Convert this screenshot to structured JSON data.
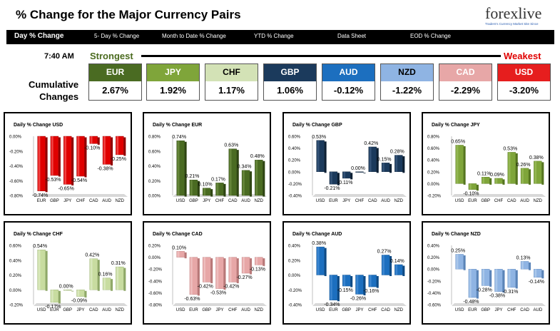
{
  "header": {
    "title": "% Change for the Major Currency Pairs",
    "logo_main": "forexlive",
    "logo_tag": "Traders's Currency Market Site Since"
  },
  "nav": {
    "items": [
      "Day % Change",
      "5- Day % Change",
      "Month to Date % Change",
      "YTD % Change",
      "Data Sheet",
      "EOD % Change"
    ]
  },
  "summary": {
    "time": "7:40 AM",
    "strongest_label": "Strongest",
    "weakest_label": "Weakest",
    "cumulative_label_1": "Cumulative",
    "cumulative_label_2": "Changes",
    "currencies": [
      {
        "name": "EUR",
        "value": "2.67%",
        "bg": "#4a6b22",
        "fg": "#ffffff"
      },
      {
        "name": "JPY",
        "value": "1.92%",
        "bg": "#7fa53a",
        "fg": "#ffffff"
      },
      {
        "name": "CHF",
        "value": "1.17%",
        "bg": "#d3e2b6",
        "fg": "#000000"
      },
      {
        "name": "GBP",
        "value": "1.06%",
        "bg": "#1b3a5c",
        "fg": "#ffffff"
      },
      {
        "name": "AUD",
        "value": "-0.12%",
        "bg": "#1c6fbf",
        "fg": "#ffffff"
      },
      {
        "name": "NZD",
        "value": "-1.22%",
        "bg": "#8fb4e3",
        "fg": "#000000"
      },
      {
        "name": "CAD",
        "value": "-2.29%",
        "bg": "#e7a7a7",
        "fg": "#ffffff"
      },
      {
        "name": "USD",
        "value": "-3.20%",
        "bg": "#e61e1e",
        "fg": "#ffffff"
      }
    ]
  },
  "chart_data": [
    {
      "type": "bar",
      "title": "Daily % Change USD",
      "categories": [
        "EUR",
        "GBP",
        "JPY",
        "CHF",
        "CAD",
        "AUD",
        "NZD"
      ],
      "values": [
        -0.74,
        -0.53,
        -0.65,
        -0.54,
        -0.1,
        -0.38,
        -0.25
      ],
      "ylim": [
        -0.8,
        0.0
      ],
      "ticks": [
        "0.00%",
        "-0.20%",
        "-0.40%",
        "-0.60%",
        "-0.80%"
      ],
      "color": "#e00000",
      "dark": "#900000",
      "light": "#ff8080"
    },
    {
      "type": "bar",
      "title": "Daily % Change EUR",
      "categories": [
        "USD",
        "GBP",
        "JPY",
        "CHF",
        "CAD",
        "AUD",
        "NZD"
      ],
      "values": [
        0.74,
        0.21,
        0.1,
        0.17,
        0.63,
        0.34,
        0.48
      ],
      "ylim": [
        0.0,
        0.8
      ],
      "ticks": [
        "0.80%",
        "0.60%",
        "0.40%",
        "0.20%",
        "0.00%"
      ],
      "color": "#4a6b22",
      "dark": "#2e4512",
      "light": "#7fa050"
    },
    {
      "type": "bar",
      "title": "Daily % Change GBP",
      "categories": [
        "USD",
        "EUR",
        "JPY",
        "CHF",
        "CAD",
        "AUD",
        "NZD"
      ],
      "values": [
        0.53,
        -0.21,
        -0.11,
        0.0,
        0.42,
        0.15,
        0.28
      ],
      "ylim": [
        -0.4,
        0.6
      ],
      "ticks": [
        "0.60%",
        "0.40%",
        "0.20%",
        "0.00%",
        "-0.20%",
        "-0.40%"
      ],
      "color": "#1b3a5c",
      "dark": "#0c1f33",
      "light": "#4b6a8f"
    },
    {
      "type": "bar",
      "title": "Daily % Change JPY",
      "categories": [
        "USD",
        "EUR",
        "GBP",
        "CHF",
        "CAD",
        "AUD",
        "NZD"
      ],
      "values": [
        0.65,
        -0.1,
        0.11,
        0.09,
        0.53,
        0.26,
        0.38
      ],
      "ylim": [
        -0.2,
        0.8
      ],
      "ticks": [
        "0.80%",
        "0.60%",
        "0.40%",
        "0.20%",
        "0.00%",
        "-0.20%"
      ],
      "color": "#7fa53a",
      "dark": "#55751f",
      "light": "#a8c86a"
    },
    {
      "type": "bar",
      "title": "Daily % Change CHF",
      "categories": [
        "USD",
        "EUR",
        "GBP",
        "JPY",
        "CAD",
        "AUD",
        "NZD"
      ],
      "values": [
        0.54,
        -0.17,
        0.0,
        -0.09,
        0.42,
        0.16,
        0.31
      ],
      "ylim": [
        -0.2,
        0.6
      ],
      "ticks": [
        "0.60%",
        "0.40%",
        "0.20%",
        "0.00%",
        "-0.20%"
      ],
      "color": "#c8dca0",
      "dark": "#8fa868",
      "light": "#e8f2d6"
    },
    {
      "type": "bar",
      "title": "Daily % Change CAD",
      "categories": [
        "USD",
        "EUR",
        "GBP",
        "JPY",
        "CHF",
        "AUD",
        "NZD"
      ],
      "values": [
        0.1,
        -0.63,
        -0.42,
        -0.53,
        -0.42,
        -0.27,
        -0.13
      ],
      "ylim": [
        -0.8,
        0.2
      ],
      "ticks": [
        "0.20%",
        "0.00%",
        "-0.20%",
        "-0.40%",
        "-0.60%",
        "-0.80%"
      ],
      "color": "#e7a7a7",
      "dark": "#b87878",
      "light": "#f6d4d4"
    },
    {
      "type": "bar",
      "title": "Daily % Change AUD",
      "categories": [
        "USD",
        "EUR",
        "GBP",
        "JPY",
        "CHF",
        "CAD",
        "NZD"
      ],
      "values": [
        0.38,
        -0.34,
        -0.15,
        -0.26,
        -0.16,
        0.27,
        0.14
      ],
      "ylim": [
        -0.4,
        0.4
      ],
      "ticks": [
        "0.40%",
        "0.20%",
        "0.00%",
        "-0.20%",
        "-0.40%"
      ],
      "color": "#1c6fbf",
      "dark": "#0d4a85",
      "light": "#5a9ce0"
    },
    {
      "type": "bar",
      "title": "Daily % Change NZD",
      "categories": [
        "USD",
        "EUR",
        "GBP",
        "JPY",
        "CHF",
        "CAD",
        "AUD"
      ],
      "values": [
        0.25,
        -0.48,
        -0.28,
        -0.38,
        -0.31,
        0.13,
        -0.14
      ],
      "ylim": [
        -0.6,
        0.4
      ],
      "ticks": [
        "0.40%",
        "0.20%",
        "0.00%",
        "-0.20%",
        "-0.40%",
        "-0.60%"
      ],
      "color": "#8fb4e3",
      "dark": "#5a84b8",
      "light": "#c4d9f2"
    }
  ]
}
